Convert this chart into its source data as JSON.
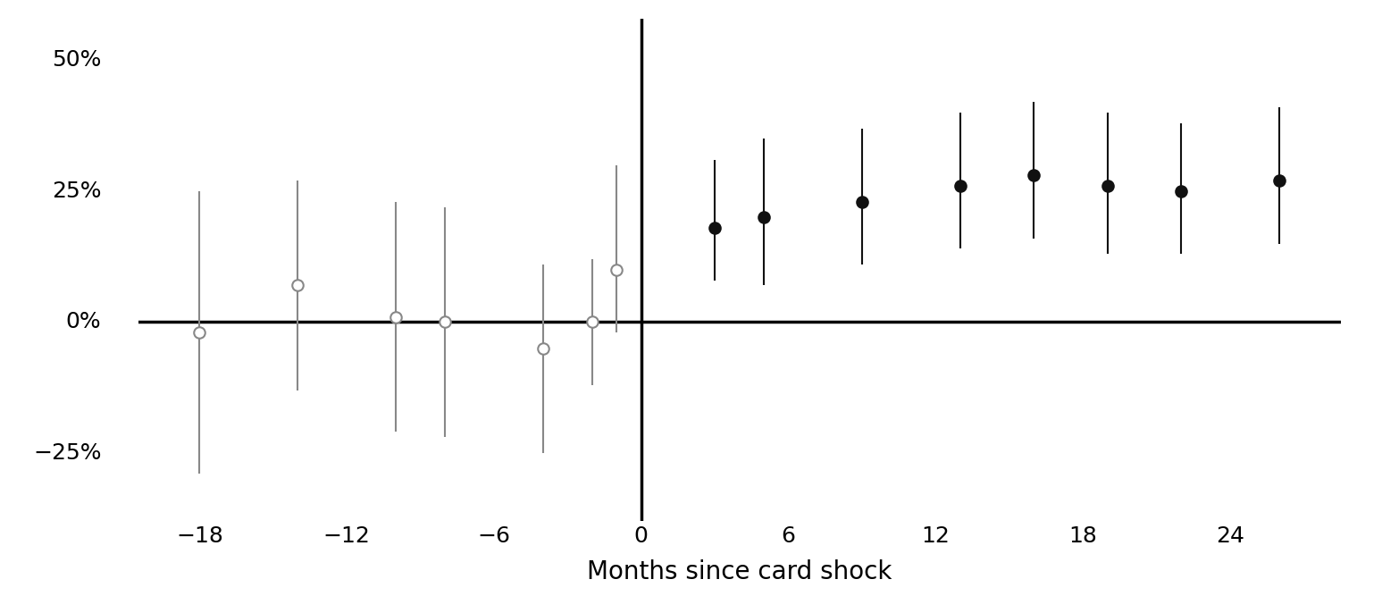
{
  "pre_shock": {
    "x": [
      -18,
      -14,
      -10,
      -8,
      -4,
      -2
    ],
    "y": [
      -2,
      7,
      1,
      0,
      -5,
      0
    ],
    "yerr_lo": [
      27,
      20,
      22,
      22,
      20,
      12
    ],
    "yerr_hi": [
      27,
      20,
      22,
      22,
      16,
      12
    ]
  },
  "post_shock_open": {
    "x": [
      -1
    ],
    "y": [
      10
    ],
    "yerr_lo": [
      12
    ],
    "yerr_hi": [
      20
    ]
  },
  "post_shock_filled": {
    "x": [
      3,
      5,
      9,
      13,
      16,
      19,
      22,
      26
    ],
    "y": [
      18,
      20,
      23,
      26,
      28,
      26,
      25,
      27
    ],
    "yerr_lo": [
      10,
      13,
      12,
      12,
      12,
      13,
      12,
      12
    ],
    "yerr_hi": [
      13,
      15,
      14,
      14,
      14,
      14,
      13,
      14
    ]
  },
  "xlim": [
    -20.5,
    28.5
  ],
  "ylim": [
    -38,
    58
  ],
  "yticks": [
    -25,
    0,
    25,
    50
  ],
  "ytick_labels": [
    "−25%",
    "0%",
    "25%",
    "50%"
  ],
  "xticks": [
    -18,
    -12,
    -6,
    0,
    6,
    12,
    18,
    24
  ],
  "xtick_labels": [
    "−18",
    "−12",
    "−6",
    "0",
    "6",
    "12",
    "18",
    "24"
  ],
  "xlabel": "Months since card shock",
  "vline_x": 0,
  "hline_y": 0,
  "pre_color": "#888888",
  "post_color": "#111111",
  "marker_size": 9,
  "linewidth": 1.5,
  "background_color": "#ffffff"
}
